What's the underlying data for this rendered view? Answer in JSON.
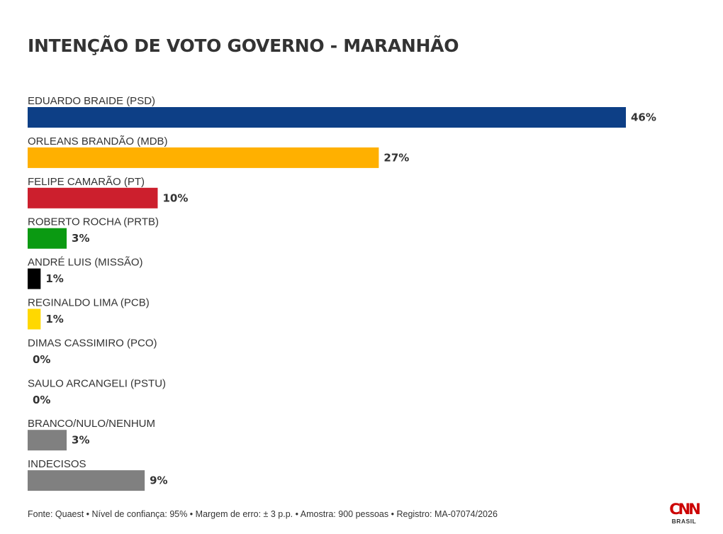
{
  "chart_data": {
    "type": "bar",
    "orientation": "horizontal",
    "title": "INTENÇÃO DE VOTO GOVERNO - MARANHÃO",
    "categories": [
      "EDUARDO BRAIDE (PSD)",
      "ORLEANS BRANDÃO (MDB)",
      "FELIPE CAMARÃO (PT)",
      "ROBERTO ROCHA (PRTB)",
      "ANDRÉ LUIS (MISSÃO)",
      "REGINALDO LIMA (PCB)",
      "DIMAS CASSIMIRO (PCO)",
      "SAULO ARCANGELI (PSTU)",
      "BRANCO/NULO/NENHUM",
      "INDECISOS"
    ],
    "values": [
      46,
      27,
      10,
      3,
      1,
      1,
      0,
      0,
      3,
      9
    ],
    "value_labels": [
      "46%",
      "27%",
      "10%",
      "3%",
      "1%",
      "1%",
      "0%",
      "0%",
      "3%",
      "9%"
    ],
    "colors": [
      "#0d3f86",
      "#ffb000",
      "#cc1f2d",
      "#0b9a12",
      "#000000",
      "#ffd800",
      "#808080",
      "#808080",
      "#808080",
      "#808080"
    ],
    "xlim": [
      0,
      46
    ],
    "grid": false,
    "legend": "none"
  },
  "source": "Fonte: Quaest • Nível de confiança: 95% • Margem de erro: ± 3 p.p. • Amostra: 900 pessoas • Registro: MA-07074/2026",
  "logo": {
    "mark": "CNN",
    "sub": "BRASIL"
  }
}
